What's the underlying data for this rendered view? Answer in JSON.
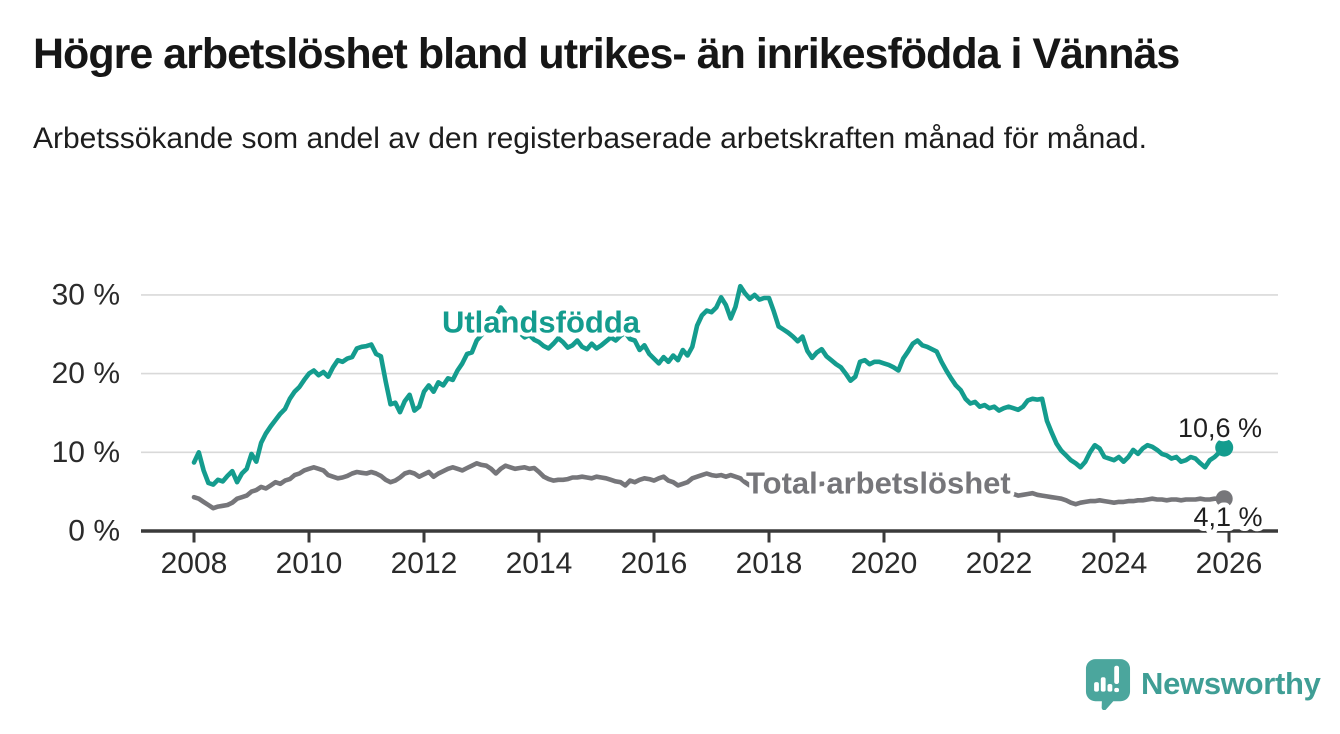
{
  "header": {
    "title": "Högre arbetslöshet bland utrikes- än inrikesfödda i Vännäs",
    "subtitle": "Arbetssökande som andel av den registerbaserade arbetskraften månad för månad."
  },
  "branding": {
    "logo_text": "Newsworthy"
  },
  "colors": {
    "foreign_line": "#149c8e",
    "total_line": "#76767a",
    "grid": "#d9d9d9",
    "axis": "#3a3a3a",
    "tick_text": "#2b2b2b",
    "value_text": "#1f1f1f",
    "logo_bubble": "#4ba69d",
    "logo_text": "#3f9e95"
  },
  "chart_data": {
    "type": "line",
    "title": "Högre arbetslöshet bland utrikes- än inrikesfödda i Vännäs",
    "subtitle": "Arbetssökande som andel av den registerbaserade arbetskraften månad för månad.",
    "frequency": "monthly",
    "x_start_year": 2008,
    "x_end_year": 2026,
    "x_ticks": [
      2008,
      2010,
      2012,
      2014,
      2016,
      2018,
      2020,
      2022,
      2024,
      2026
    ],
    "ylim": [
      0,
      32
    ],
    "y_ticks": [
      {
        "value": 0,
        "label": "0 %"
      },
      {
        "value": 10,
        "label": "10 %"
      },
      {
        "value": 20,
        "label": "20 %"
      },
      {
        "value": 30,
        "label": "30 %"
      }
    ],
    "grid": true,
    "legend_position": "inline-labels",
    "series": [
      {
        "name": "Utlandsfödda",
        "end_label": "10,6 %",
        "end_value": 10.6,
        "values": [
          8.7,
          10.0,
          7.7,
          6.1,
          5.9,
          6.5,
          6.3,
          7.0,
          7.6,
          6.2,
          7.3,
          7.9,
          9.8,
          8.8,
          11.2,
          12.4,
          13.3,
          14.1,
          14.9,
          15.5,
          16.8,
          17.7,
          18.3,
          19.2,
          20.0,
          20.4,
          19.8,
          20.2,
          19.6,
          20.8,
          21.7,
          21.5,
          21.9,
          22.1,
          23.2,
          23.4,
          23.5,
          23.7,
          22.5,
          22.2,
          19.0,
          16.1,
          16.3,
          15.1,
          16.5,
          17.3,
          15.3,
          15.8,
          17.7,
          18.5,
          17.7,
          18.9,
          18.5,
          19.4,
          19.2,
          20.4,
          21.3,
          22.5,
          22.7,
          24.2,
          24.9,
          25.5,
          26.2,
          27.2,
          28.4,
          27.6,
          26.6,
          25.8,
          25.2,
          24.6,
          24.9,
          24.3,
          24.0,
          23.5,
          23.2,
          23.8,
          24.5,
          24.0,
          23.3,
          23.6,
          24.2,
          23.4,
          23.1,
          23.8,
          23.2,
          23.6,
          24.1,
          24.6,
          24.2,
          24.8,
          25.2,
          24.4,
          24.2,
          23.0,
          23.6,
          22.5,
          21.9,
          21.3,
          22.1,
          21.5,
          22.3,
          21.7,
          23.0,
          22.3,
          23.4,
          26.1,
          27.4,
          28.0,
          27.8,
          28.4,
          29.7,
          28.7,
          27.0,
          28.5,
          31.1,
          30.2,
          29.5,
          30.0,
          29.4,
          29.6,
          29.6,
          27.9,
          26.0,
          25.6,
          25.2,
          24.7,
          24.1,
          24.7,
          22.9,
          22.0,
          22.7,
          23.1,
          22.2,
          21.7,
          21.2,
          20.8,
          20.0,
          19.1,
          19.6,
          21.5,
          21.7,
          21.2,
          21.5,
          21.5,
          21.3,
          21.1,
          20.8,
          20.4,
          21.9,
          22.8,
          23.8,
          24.2,
          23.6,
          23.4,
          23.1,
          22.8,
          21.5,
          20.4,
          19.4,
          18.5,
          17.9,
          16.8,
          16.2,
          16.4,
          15.8,
          16.0,
          15.6,
          15.8,
          15.3,
          15.6,
          15.8,
          15.6,
          15.4,
          15.8,
          16.6,
          16.8,
          16.7,
          16.8,
          14.0,
          12.5,
          11.1,
          10.2,
          9.6,
          9.0,
          8.6,
          8.1,
          8.8,
          10.0,
          10.9,
          10.5,
          9.4,
          9.2,
          9.0,
          9.4,
          8.8,
          9.4,
          10.3,
          9.8,
          10.5,
          10.9,
          10.7,
          10.3,
          9.8,
          9.6,
          9.2,
          9.4,
          8.8,
          9.0,
          9.4,
          9.2,
          8.6,
          8.1,
          9.0,
          9.4,
          10.0,
          10.6
        ]
      },
      {
        "name": "Total arbetslöshet",
        "end_label": "4,1 %",
        "end_value": 4.1,
        "values": [
          4.3,
          4.1,
          3.7,
          3.3,
          2.9,
          3.1,
          3.2,
          3.3,
          3.6,
          4.1,
          4.3,
          4.5,
          5.0,
          5.2,
          5.6,
          5.4,
          5.8,
          6.2,
          6.0,
          6.4,
          6.6,
          7.1,
          7.3,
          7.7,
          7.9,
          8.1,
          7.9,
          7.7,
          7.1,
          6.9,
          6.7,
          6.8,
          7.0,
          7.3,
          7.5,
          7.4,
          7.3,
          7.5,
          7.3,
          7.0,
          6.5,
          6.2,
          6.4,
          6.8,
          7.3,
          7.5,
          7.3,
          6.9,
          7.2,
          7.5,
          6.9,
          7.3,
          7.6,
          7.9,
          8.1,
          7.9,
          7.7,
          8.0,
          8.3,
          8.6,
          8.4,
          8.3,
          7.9,
          7.3,
          7.9,
          8.3,
          8.1,
          7.9,
          8.0,
          8.1,
          7.9,
          8.0,
          7.5,
          6.9,
          6.6,
          6.4,
          6.5,
          6.5,
          6.6,
          6.8,
          6.8,
          6.9,
          6.8,
          6.7,
          6.9,
          6.8,
          6.7,
          6.5,
          6.3,
          6.2,
          5.8,
          6.4,
          6.2,
          6.5,
          6.7,
          6.6,
          6.4,
          6.7,
          6.9,
          6.4,
          6.2,
          5.8,
          6.0,
          6.2,
          6.7,
          6.9,
          7.1,
          7.3,
          7.1,
          7.0,
          7.1,
          6.9,
          7.1,
          6.9,
          6.7,
          6.2,
          5.8,
          6.0,
          6.1,
          6.2,
          6.3,
          6.2,
          6.1,
          6.0,
          5.9,
          5.8,
          5.9,
          6.0,
          5.9,
          5.8,
          5.9,
          6.0,
          6.0,
          5.9,
          5.8,
          5.9,
          5.8,
          5.7,
          5.6,
          5.7,
          5.8,
          5.7,
          5.6,
          5.7,
          5.8,
          5.9,
          6.1,
          6.3,
          6.2,
          6.1,
          6.0,
          5.9,
          5.8,
          5.7,
          5.6,
          5.5,
          5.6,
          5.5,
          5.5,
          5.4,
          5.5,
          5.3,
          5.1,
          4.9,
          5.0,
          5.1,
          5.0,
          5.1,
          5.2,
          5.1,
          5.0,
          4.7,
          4.5,
          4.6,
          4.7,
          4.8,
          4.6,
          4.5,
          4.4,
          4.3,
          4.2,
          4.1,
          3.9,
          3.6,
          3.4,
          3.6,
          3.7,
          3.8,
          3.8,
          3.9,
          3.8,
          3.7,
          3.6,
          3.7,
          3.7,
          3.8,
          3.8,
          3.9,
          3.9,
          4.0,
          4.1,
          4.0,
          4.0,
          3.9,
          4.0,
          4.0,
          3.9,
          4.0,
          4.0,
          4.0,
          4.1,
          4.0,
          4.0,
          4.1,
          4.1,
          4.1
        ]
      }
    ]
  }
}
